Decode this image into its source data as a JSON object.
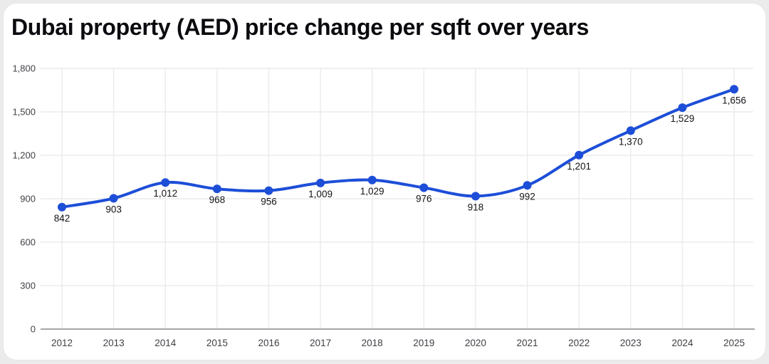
{
  "chart_data": {
    "type": "line",
    "title": "Dubai property (AED) price change per sqft over years",
    "x": [
      2012,
      2013,
      2014,
      2015,
      2016,
      2017,
      2018,
      2019,
      2020,
      2021,
      2022,
      2023,
      2024,
      2025
    ],
    "xtick_labels": [
      "2012",
      "2013",
      "2014",
      "2015",
      "2016",
      "2017",
      "2018",
      "2019",
      "2020",
      "2021",
      "2022",
      "2023",
      "2024",
      "2025"
    ],
    "values": [
      842,
      903,
      1012,
      968,
      956,
      1009,
      1029,
      976,
      918,
      992,
      1201,
      1370,
      1529,
      1656
    ],
    "point_labels": [
      "842",
      "903",
      "1,012",
      "968",
      "956",
      "1,009",
      "1,029",
      "976",
      "918",
      "992",
      "1,201",
      "1,370",
      "1,529",
      "1,656"
    ],
    "ylabel": "",
    "xlabel": "",
    "ylim": [
      0,
      1800
    ],
    "yticks": [
      0,
      300,
      600,
      900,
      1200,
      1500,
      1800
    ],
    "ytick_labels": [
      "0",
      "300",
      "600",
      "900",
      "1,200",
      "1,500",
      "1,800"
    ],
    "grid": true,
    "legend": "none",
    "colors": {
      "line": "#1d4ed8",
      "marker": "#1d4ed8",
      "grid": "#ececec",
      "axis": "#a6a6a6",
      "tick_text": "#3f3f46",
      "point_label_text": "#141419",
      "title_text": "#0b0b0f",
      "card_bg": "#ffffff",
      "page_bg": "#ebebeb"
    }
  }
}
